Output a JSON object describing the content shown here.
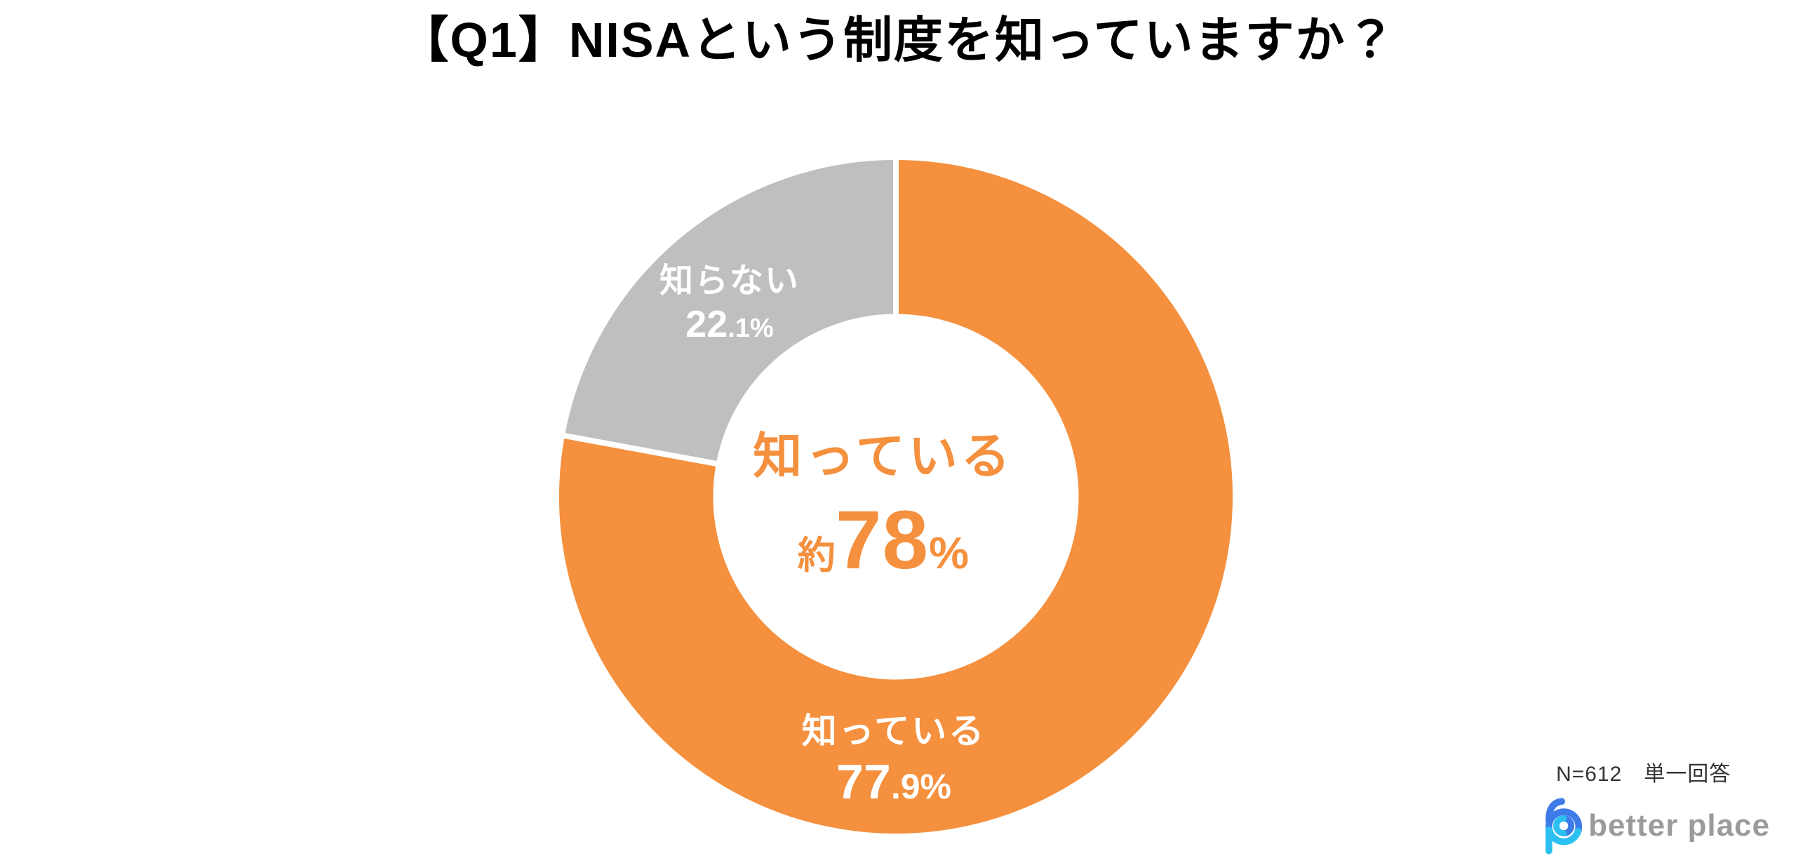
{
  "title": "【Q1】NISAという制度を知っていますか？",
  "chart_data": {
    "type": "pie",
    "subtype": "donut",
    "title": "【Q1】NISAという制度を知っていますか？",
    "categories": [
      "知っている",
      "知らない"
    ],
    "values": [
      77.9,
      22.1
    ],
    "unit": "%",
    "total": 100,
    "start_angle": "top",
    "direction": "clockwise",
    "inner_radius_ratio": 0.53,
    "separator_color": "#FFFFFF",
    "separator_width": 8,
    "segments": [
      {
        "label": "知っている",
        "value": 77.9,
        "pct_main": "77",
        "pct_rest": ".9%",
        "color": "#F4903E",
        "label_color": "#FFFFFF"
      },
      {
        "label": "知らない",
        "value": 22.1,
        "pct_main": "22",
        "pct_rest": ".1%",
        "color": "#BFBFBF",
        "label_color": "#FFFFFF"
      }
    ],
    "center_label": {
      "line1": "知っている",
      "approx_prefix": "約",
      "number": "78",
      "percent_sign": "%",
      "color": "#F4903E"
    },
    "legend": "none",
    "annotations": [
      "N=612　単一回答"
    ]
  },
  "note": {
    "text": "N=612　単一回答",
    "sample_size": "N=612",
    "answer_type": "単一回答"
  },
  "logo": {
    "brand": "better place",
    "icon": "betterplace-b-icon",
    "text_color": "#9B9B9B",
    "icon_blue": "#3D7BE8",
    "icon_cyan": "#2BC0F0"
  },
  "colors": {
    "accent_orange": "#F4903E",
    "neutral_gray": "#BFBFBF",
    "background": "#FFFFFF",
    "title_text": "#000000",
    "note_text": "#333333"
  }
}
